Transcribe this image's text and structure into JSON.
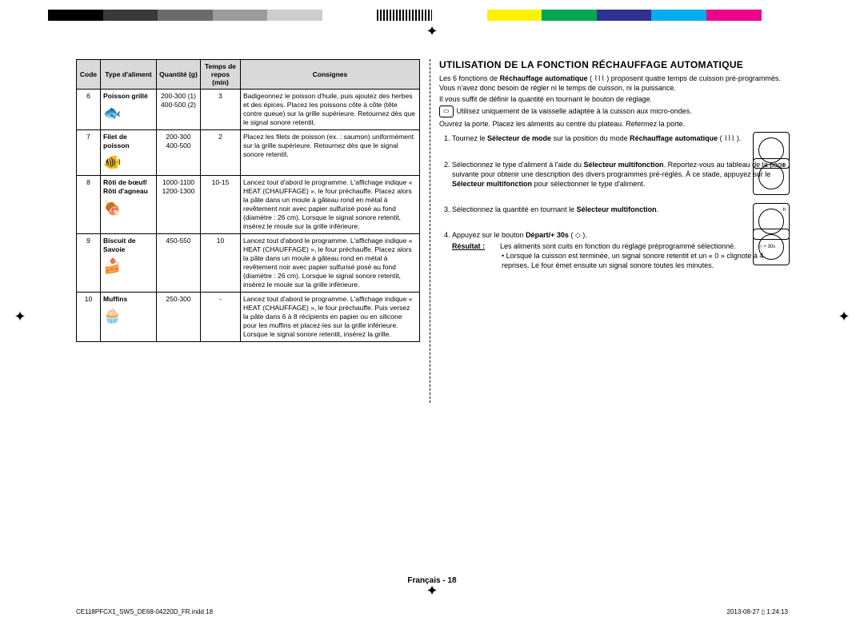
{
  "color_bar": [
    "#000",
    "#4d4d4d",
    "#808080",
    "#b3b3b3",
    "#fff",
    "#000",
    "#fff",
    "#000",
    "#fff",
    "#000",
    "#fff",
    "#000",
    "#fff",
    "#fff000",
    "#00a651",
    "#00aeef",
    "#000",
    "#ec008c",
    "#fff",
    "#92278f",
    "#000",
    "#00a99d",
    "#000"
  ],
  "color_bar_simple": [
    "#000000",
    "#404040",
    "#808080",
    "#bfbfbf",
    "#ffffff",
    "#c0c0c0",
    "#808080",
    "#404040",
    "#ffffff",
    "#fff200",
    "#00a651",
    "#2e3192",
    "#00aeef",
    "#ec008c",
    "#ffffff"
  ],
  "table": {
    "headers": [
      "Code",
      "Type d'aliment",
      "Quantité (g)",
      "Temps de repos (min)",
      "Consignes"
    ],
    "rows": [
      {
        "code": "6",
        "type": "Poisson grillé",
        "icon": "🐟",
        "qty": "200-300 (1)\n400-500 (2)",
        "time": "3",
        "instr": "Badigeonnez le poisson d'huile, puis ajoutez des herbes et des épices. Placez les poissons côte à côte (tête contre queue) sur la grille supérieure. Retournez dès que le signal sonore retentit."
      },
      {
        "code": "7",
        "type": "Filet de poisson",
        "icon": "🐠",
        "qty": "200-300\n400-500",
        "time": "2",
        "instr": "Placez les filets de poisson (ex. : saumon) uniformément sur la grille supérieure. Retournez dès que le signal sonore retentit."
      },
      {
        "code": "8",
        "type": "Rôti de bœuf/ Rôti d'agneau",
        "icon": "🍖",
        "qty": "1000-1100\n1200-1300",
        "time": "10-15",
        "instr": "Lancez tout d'abord le programme. L'affichage indique « HEAT (CHAUFFAGE) », le four préchauffe. Placez alors la pâte dans un moule à gâteau rond en métal à revêtement noir avec papier sulfurisé posé au fond (diamètre : 26 cm). Lorsque le signal sonore retentit, insérez le moule sur la grille inférieure."
      },
      {
        "code": "9",
        "type": "Biscuit de Savoie",
        "icon": "🍰",
        "qty": "450-550",
        "time": "10",
        "instr": "Lancez tout d'abord le programme. L'affichage indique « HEAT (CHAUFFAGE) », le four préchauffe. Placez alors la pâte dans un moule à gâteau rond en métal à revêtement noir avec papier sulfurisé posé au fond (diamètre : 26 cm). Lorsque le signal sonore retentit, insérez le moule sur la grille inférieure."
      },
      {
        "code": "10",
        "type": "Muffins",
        "icon": "🧁",
        "qty": "250-300",
        "time": "-",
        "instr": "Lancez tout d'abord le programme. L'affichage indique « HEAT (CHAUFFAGE) », le four préchauffe. Puis versez la pâte dans 6 à 8 récipients en papier ou en silicone pour les muffins et placez-les sur la grille inférieure. Lorsque le signal sonore retentit, insérez la grille."
      }
    ]
  },
  "right": {
    "title": "UTILISATION DE LA FONCTION RÉCHAUFFAGE AUTOMATIQUE",
    "intro1a": "Les 6 fonctions de ",
    "intro1b": "Réchauffage automatique",
    "intro1c": " ( ⌇⌇⌇ ) proposent quatre temps de cuisson pré-programmés. Vous n'avez donc besoin de régler ni le temps de cuisson, ni la puissance.",
    "intro2": "Il vous suffit de définir la quantité en tournant le bouton de réglage.",
    "mw": "Utilisez uniquement de la vaisselle adaptée à la cuisson aux micro-ondes.",
    "intro3": "Ouvrez la porte. Placez les aliments au centre du plateau. Refermez la porte.",
    "steps": [
      {
        "pre": "Tournez le ",
        "b1": "Sélecteur de mode",
        "mid": " sur la position du mode ",
        "b2": "Réchauffage automatique",
        "post": " ( ⌇⌇⌇ )."
      },
      {
        "pre": "Sélectionnez le type d'aliment à l'aide du ",
        "b1": "Sélecteur multifonction",
        "mid": ". Reportez-vous au tableau de la page suivante pour obtenir une description des divers programmes pré-réglés. À ce stade, appuyez sur le ",
        "b2": "Sélecteur multifonction",
        "post": " pour sélectionner le type d'aliment."
      },
      {
        "pre": "Sélectionnez la quantité en tournant le ",
        "b1": "Sélecteur multifonction",
        "post": "."
      },
      {
        "pre": "Appuyez sur le bouton ",
        "b1": "Départ/+ 30s",
        "post": " ( ◇ )."
      }
    ],
    "result_label": "Résultat :",
    "result_text": "Les aliments sont cuits en fonction du réglage préprogrammé sélectionné.",
    "bullet": "Lorsque la cuisson est terminée, un signal sonore retentit et un « 0 » clignote à 4 reprises. Le four émet ensuite un signal sonore toutes les minutes.",
    "knob4_text": "◇ + 30s"
  },
  "footer": "Français - 18",
  "foot_left": "CE118PFCX1_SWS_DE68-04220D_FR.indd   18",
  "foot_right": "2013-08-27   ▯ 1:24:13"
}
